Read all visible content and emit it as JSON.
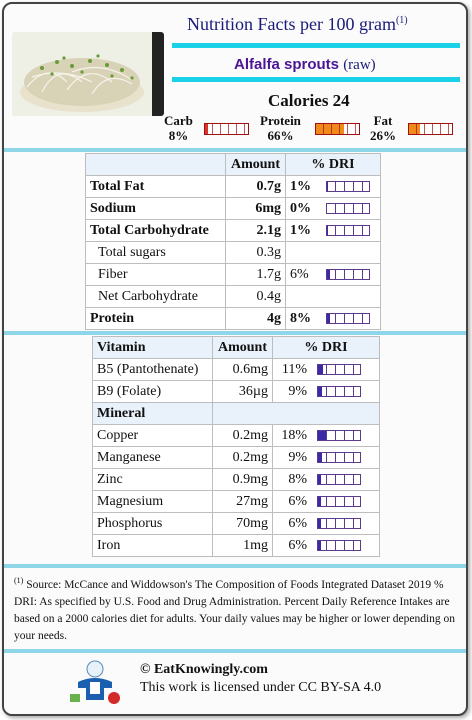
{
  "header": {
    "title": "Nutrition Facts per 100 gram",
    "footnote_ref": "(1)"
  },
  "food": {
    "name": "Alfalfa sprouts",
    "variant": "(raw)"
  },
  "calories": "Calories 24",
  "macros": [
    {
      "label": "Carb",
      "percent": "8%",
      "fraction": 0.08,
      "color": "#d9332b"
    },
    {
      "label": "Protein",
      "percent": "66%",
      "fraction": 0.66,
      "color": "#f08a1a"
    },
    {
      "label": "Fat",
      "percent": "26%",
      "fraction": 0.26,
      "color": "#f08a1a"
    }
  ],
  "main_table": {
    "headers": [
      "",
      "Amount",
      "% DRI"
    ],
    "rows": [
      {
        "name": "Total Fat",
        "amount": "0.7g",
        "dri": "1%",
        "dri_fraction": 0.01,
        "bold": true
      },
      {
        "name": "Sodium",
        "amount": "6mg",
        "dri": "0%",
        "dri_fraction": 0.0,
        "bold": true
      },
      {
        "name": "Total Carbohydrate",
        "amount": "2.1g",
        "dri": "1%",
        "dri_fraction": 0.01,
        "bold": true
      },
      {
        "name": "Total sugars",
        "amount": "0.3g",
        "dri": "",
        "bold": false
      },
      {
        "name": "Fiber",
        "amount": "1.7g",
        "dri": "6%",
        "dri_fraction": 0.06,
        "bold": false
      },
      {
        "name": "Net Carbohydrate",
        "amount": "0.4g",
        "dri": "",
        "bold": false
      },
      {
        "name": "Protein",
        "amount": "4g",
        "dri": "8%",
        "dri_fraction": 0.08,
        "bold": true
      }
    ]
  },
  "vitamin_table": {
    "headers": [
      "Vitamin",
      "Amount",
      "% DRI"
    ],
    "vitamins": [
      {
        "name": "B5 (Pantothenate)",
        "amount": "0.6mg",
        "dri": "11%",
        "dri_fraction": 0.11
      },
      {
        "name": "B9 (Folate)",
        "amount": "36µg",
        "dri": "9%",
        "dri_fraction": 0.09
      }
    ],
    "mineral_header": "Mineral",
    "minerals": [
      {
        "name": "Copper",
        "amount": "0.2mg",
        "dri": "18%",
        "dri_fraction": 0.18
      },
      {
        "name": "Manganese",
        "amount": "0.2mg",
        "dri": "9%",
        "dri_fraction": 0.09
      },
      {
        "name": "Zinc",
        "amount": "0.9mg",
        "dri": "8%",
        "dri_fraction": 0.08
      },
      {
        "name": "Magnesium",
        "amount": "27mg",
        "dri": "6%",
        "dri_fraction": 0.06
      },
      {
        "name": "Phosphorus",
        "amount": "70mg",
        "dri": "6%",
        "dri_fraction": 0.06
      },
      {
        "name": "Iron",
        "amount": "1mg",
        "dri": "6%",
        "dri_fraction": 0.06
      }
    ]
  },
  "footnote": {
    "ref": "(1)",
    "source": " Source: McCance and Widdowson's The Composition of Foods Integrated Dataset 2019",
    "dri_text": "% DRI: As specified by U.S. Food and Drug Administration. Percent Daily Reference Intakes are based on a 2000 calories diet for adults. Your daily values may be higher or lower depending on your needs."
  },
  "footer": {
    "site": "© EatKnowingly.com",
    "license": "This work is licensed under CC BY-SA 4.0"
  },
  "colors": {
    "accent": "#1ad1e8",
    "title": "#1a1a7a",
    "food_name": "#4b1596"
  }
}
